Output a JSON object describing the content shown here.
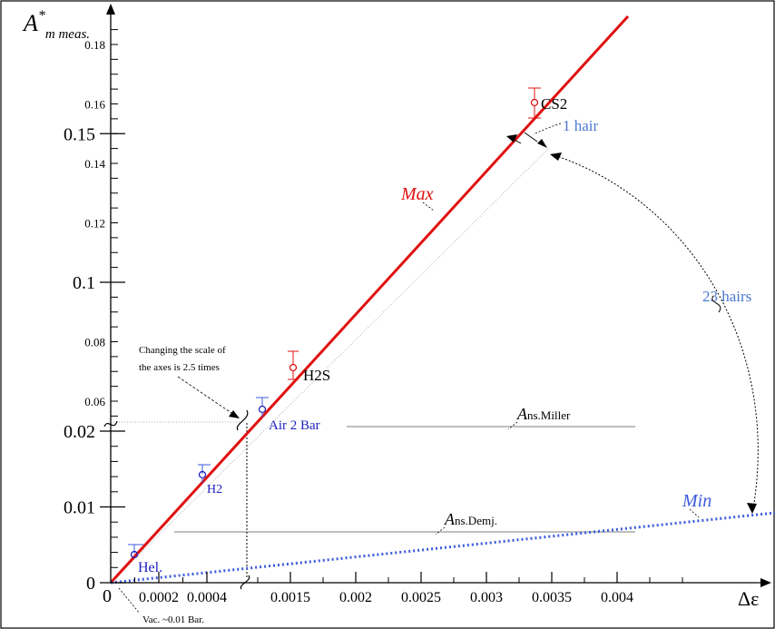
{
  "colors": {
    "frame": "#000000",
    "max_line": "#e01010",
    "min_line": "#3b5bdb",
    "blue_text": "#2020c0",
    "light_blue_text": "#4a78d0",
    "grid_gray": "#a0a0a0",
    "dotted_gray": "#909090"
  },
  "axes": {
    "ylabel_main": "A",
    "ylabel_sup": "*",
    "ylabel_sub": "m meas.",
    "xlabel": "Δε"
  },
  "chart_data": {
    "type": "line",
    "x_axis": {
      "segments": [
        {
          "range": [
            0,
            0.0004
          ],
          "ticks": [
            "0.0002",
            "0.0004"
          ]
        },
        {
          "range": [
            0.0004,
            0.0045
          ],
          "ticks": [
            "0.0015",
            "0.002",
            "0.0025",
            "0.003",
            "0.0035",
            "0.004"
          ]
        }
      ],
      "origin_label": "0"
    },
    "y_axis": {
      "segments": [
        {
          "range": [
            0,
            0.022
          ],
          "major_ticks": [
            "0",
            "0.01",
            "0.02"
          ]
        },
        {
          "range": [
            0.055,
            0.185
          ],
          "minor_labels": [
            "0.06",
            "0.08",
            "0.12",
            "0.14",
            "0.16",
            "0.18"
          ],
          "major_labels": [
            "0.1",
            "0.15"
          ]
        }
      ]
    },
    "series": [
      {
        "name": "Max",
        "kind": "solid-line"
      },
      {
        "name": "Min",
        "kind": "dotted-line"
      }
    ],
    "points": [
      {
        "label": "Hel.",
        "x": 5e-05,
        "y": 0.0035
      },
      {
        "label": "H2",
        "x": 0.00024,
        "y": 0.0145
      },
      {
        "label": "Air 2 Bar",
        "x": 0.00043,
        "y": 0.057
      },
      {
        "label": "H2S",
        "x": 0.00145,
        "y": 0.072
      },
      {
        "label": "CS2",
        "x": 0.00318,
        "y": 0.161
      }
    ],
    "reference_lines": [
      {
        "label_main": "A",
        "label_sub": "ns.Miller"
      },
      {
        "label_main": "A",
        "label_sub": "ns.Demj."
      }
    ],
    "annotations": {
      "scale_note_line1": "Changing the scale of",
      "scale_note_line2": "the axes is 2.5 times",
      "hair1": "1 hair",
      "hair23": "23 hairs",
      "vac": "Vac. ~0.01 Bar."
    }
  }
}
